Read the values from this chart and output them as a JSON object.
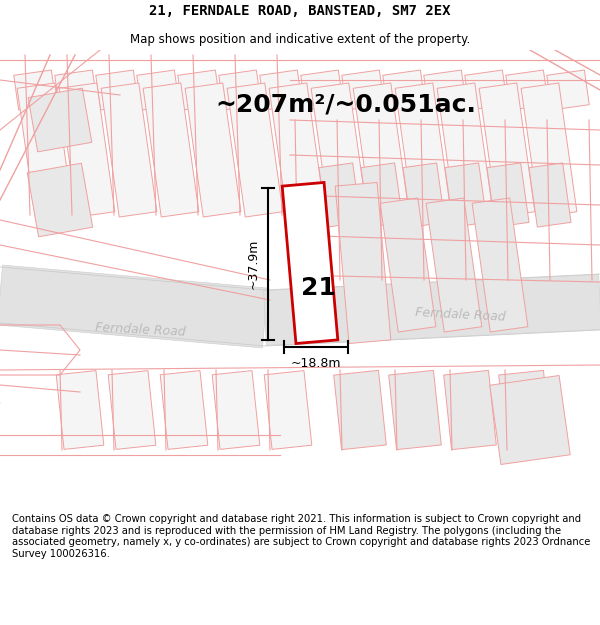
{
  "title": "21, FERNDALE ROAD, BANSTEAD, SM7 2EX",
  "subtitle": "Map shows position and indicative extent of the property.",
  "area_text": "~207m²/~0.051ac.",
  "width_label": "~18.8m",
  "height_label": "~37.9m",
  "plot_number": "21",
  "road_name_left": "Ferndale Road",
  "road_name_right": "Ferndale Road",
  "footer_text": "Contains OS data © Crown copyright and database right 2021. This information is subject to Crown copyright and database rights 2023 and is reproduced with the permission of HM Land Registry. The polygons (including the associated geometry, namely x, y co-ordinates) are subject to Crown copyright and database rights 2023 Ordnance Survey 100026316.",
  "bg_color": "#ffffff",
  "map_bg": "#f8f8f8",
  "road_fill": "#e2e2e2",
  "road_edge": "#d0d0d0",
  "plot_outline_color": "#cc0000",
  "prop_fill": "#ffffff",
  "bldg_outline": "#f0a0a0",
  "bldg_fill": "#f5f5f5",
  "bldg_fill_gray": "#e8e8e8",
  "dim_color": "#000000",
  "road_text_color": "#bbbbbb",
  "title_fontsize": 10,
  "subtitle_fontsize": 8.5,
  "area_fontsize": 18,
  "plot_num_fontsize": 18,
  "dim_fontsize": 9,
  "road_fontsize": 9,
  "footer_fontsize": 7.2
}
